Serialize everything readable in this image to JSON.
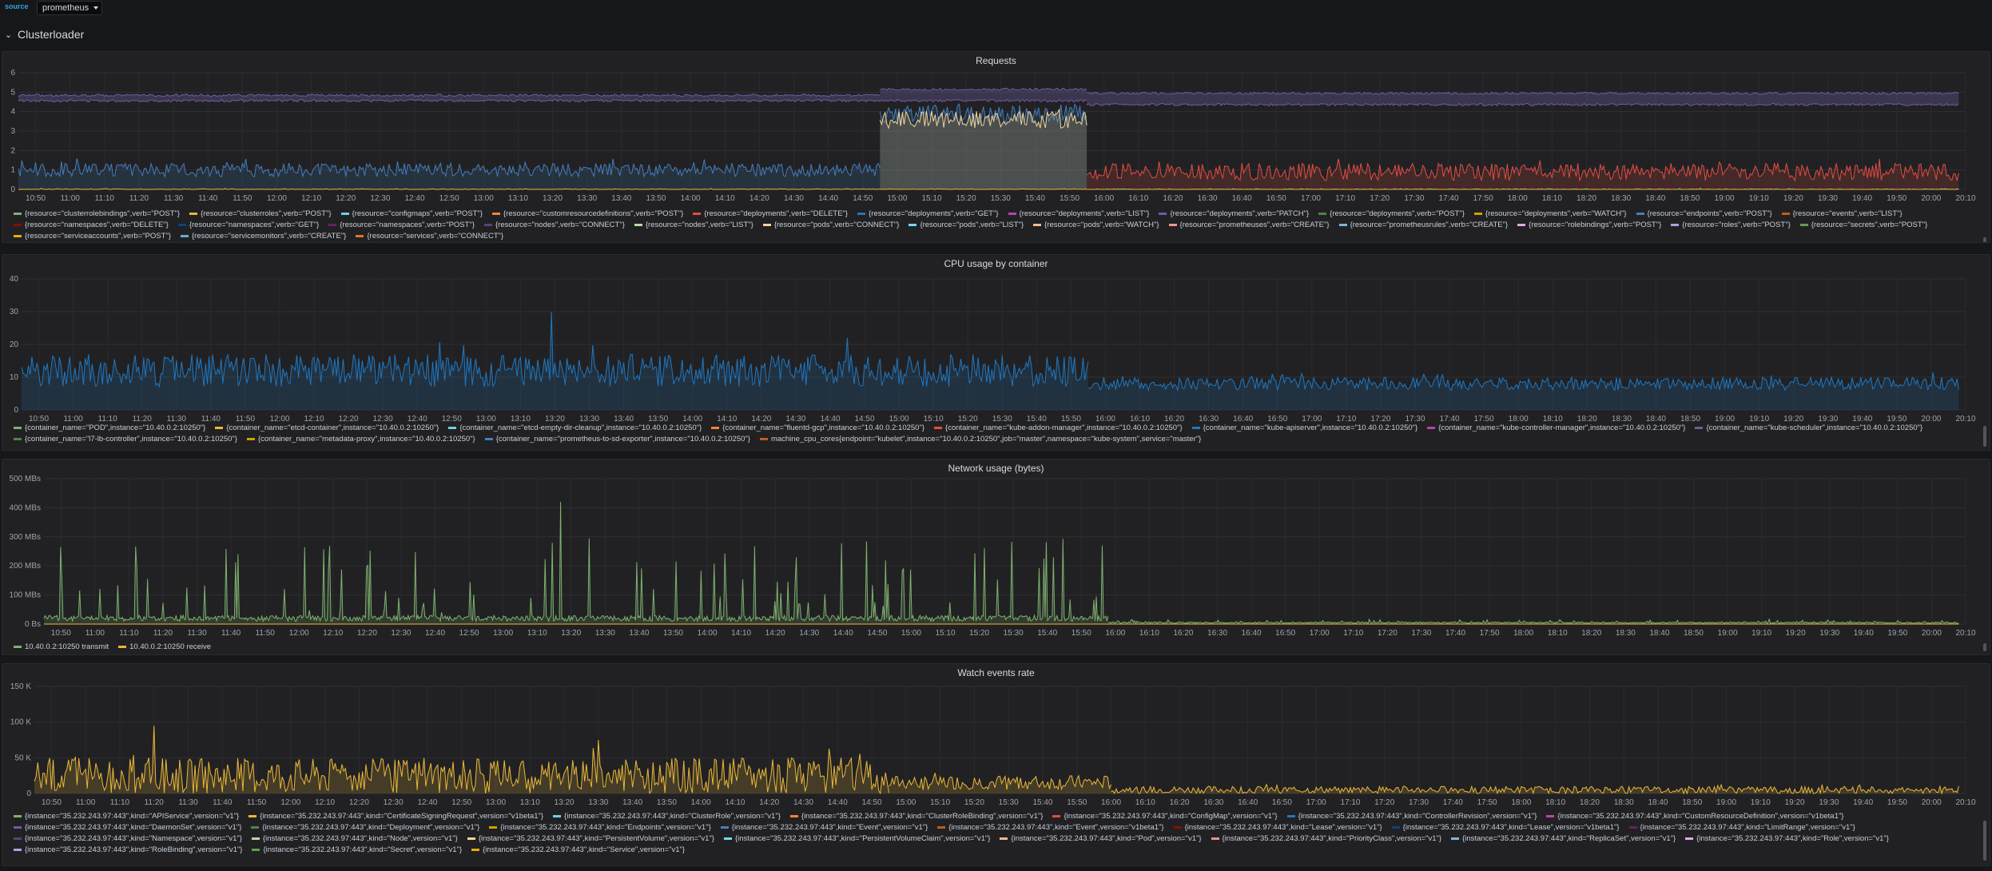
{
  "topbar": {
    "source_label": "source",
    "datasource": "prometheus"
  },
  "row": {
    "title": "Clusterloader"
  },
  "x_ticks": [
    "10:50",
    "11:00",
    "11:10",
    "11:20",
    "11:30",
    "11:40",
    "11:50",
    "12:00",
    "12:10",
    "12:20",
    "12:30",
    "12:40",
    "12:50",
    "13:00",
    "13:10",
    "13:20",
    "13:30",
    "13:40",
    "13:50",
    "14:00",
    "14:10",
    "14:20",
    "14:30",
    "14:40",
    "14:50",
    "15:00",
    "15:10",
    "15:20",
    "15:30",
    "15:40",
    "15:50",
    "16:00",
    "16:10",
    "16:20",
    "16:30",
    "16:40",
    "16:50",
    "17:00",
    "17:10",
    "17:20",
    "17:30",
    "17:40",
    "17:50",
    "18:00",
    "18:10",
    "18:20",
    "18:30",
    "18:40",
    "18:50",
    "19:00",
    "19:10",
    "19:20",
    "19:30",
    "19:40",
    "19:50",
    "20:00",
    "20:10"
  ],
  "panels": [
    {
      "title": "Requests",
      "y_ticks": [
        "0",
        "1",
        "2",
        "3",
        "4",
        "5",
        "6"
      ],
      "legend": [
        {
          "label": "{resource=\"clusterrolebindings\",verb=\"POST\"}",
          "color": "#7eb26d"
        },
        {
          "label": "{resource=\"clusterroles\",verb=\"POST\"}",
          "color": "#eab839"
        },
        {
          "label": "{resource=\"configmaps\",verb=\"POST\"}",
          "color": "#6ed0e0"
        },
        {
          "label": "{resource=\"customresourcedefinitions\",verb=\"POST\"}",
          "color": "#ef843c"
        },
        {
          "label": "{resource=\"deployments\",verb=\"DELETE\"}",
          "color": "#e24d42"
        },
        {
          "label": "{resource=\"deployments\",verb=\"GET\"}",
          "color": "#1f78c1"
        },
        {
          "label": "{resource=\"deployments\",verb=\"LIST\"}",
          "color": "#ba43a9"
        },
        {
          "label": "{resource=\"deployments\",verb=\"PATCH\"}",
          "color": "#705da0"
        },
        {
          "label": "{resource=\"deployments\",verb=\"POST\"}",
          "color": "#508642"
        },
        {
          "label": "{resource=\"deployments\",verb=\"WATCH\"}",
          "color": "#cca300"
        },
        {
          "label": "{resource=\"endpoints\",verb=\"POST\"}",
          "color": "#447ebc"
        },
        {
          "label": "{resource=\"events\",verb=\"LIST\"}",
          "color": "#c15c17"
        },
        {
          "label": "{resource=\"namespaces\",verb=\"DELETE\"}",
          "color": "#890f02"
        },
        {
          "label": "{resource=\"namespaces\",verb=\"GET\"}",
          "color": "#0a437c"
        },
        {
          "label": "{resource=\"namespaces\",verb=\"POST\"}",
          "color": "#6d1f62"
        },
        {
          "label": "{resource=\"nodes\",verb=\"CONNECT\"}",
          "color": "#584477"
        },
        {
          "label": "{resource=\"nodes\",verb=\"LIST\"}",
          "color": "#b7dbab"
        },
        {
          "label": "{resource=\"pods\",verb=\"CONNECT\"}",
          "color": "#f4d598"
        },
        {
          "label": "{resource=\"pods\",verb=\"LIST\"}",
          "color": "#70dbed"
        },
        {
          "label": "{resource=\"pods\",verb=\"WATCH\"}",
          "color": "#f9ba8f"
        },
        {
          "label": "{resource=\"prometheuses\",verb=\"CREATE\"}",
          "color": "#f29191"
        },
        {
          "label": "{resource=\"prometheusrules\",verb=\"CREATE\"}",
          "color": "#82b5d8"
        },
        {
          "label": "{resource=\"rolebindings\",verb=\"POST\"}",
          "color": "#e5a8e2"
        },
        {
          "label": "{resource=\"roles\",verb=\"POST\"}",
          "color": "#aea2e0"
        },
        {
          "label": "{resource=\"secrets\",verb=\"POST\"}",
          "color": "#629e51"
        },
        {
          "label": "{resource=\"serviceaccounts\",verb=\"POST\"}",
          "color": "#e5ac0e"
        },
        {
          "label": "{resource=\"servicemonitors\",verb=\"CREATE\"}",
          "color": "#64b0c8"
        },
        {
          "label": "{resource=\"services\",verb=\"CONNECT\"}",
          "color": "#e0752d"
        }
      ]
    },
    {
      "title": "CPU usage by container",
      "y_ticks": [
        "0",
        "10",
        "20",
        "30",
        "40"
      ],
      "legend": [
        {
          "label": "{container_name=\"POD\",instance=\"10.40.0.2:10250\"}",
          "color": "#7eb26d"
        },
        {
          "label": "{container_name=\"etcd-container\",instance=\"10.40.0.2:10250\"}",
          "color": "#eab839"
        },
        {
          "label": "{container_name=\"etcd-empty-dir-cleanup\",instance=\"10.40.0.2:10250\"}",
          "color": "#6ed0e0"
        },
        {
          "label": "{container_name=\"fluentd-gcp\",instance=\"10.40.0.2:10250\"}",
          "color": "#ef843c"
        },
        {
          "label": "{container_name=\"kube-addon-manager\",instance=\"10.40.0.2:10250\"}",
          "color": "#e24d42"
        },
        {
          "label": "{container_name=\"kube-apiserver\",instance=\"10.40.0.2:10250\"}",
          "color": "#1f78c1"
        },
        {
          "label": "{container_name=\"kube-controller-manager\",instance=\"10.40.0.2:10250\"}",
          "color": "#ba43a9"
        },
        {
          "label": "{container_name=\"kube-scheduler\",instance=\"10.40.0.2:10250\"}",
          "color": "#705da0"
        },
        {
          "label": "{container_name=\"l7-lb-controller\",instance=\"10.40.0.2:10250\"}",
          "color": "#508642"
        },
        {
          "label": "{container_name=\"metadata-proxy\",instance=\"10.40.0.2:10250\"}",
          "color": "#cca300"
        },
        {
          "label": "{container_name=\"prometheus-to-sd-exporter\",instance=\"10.40.0.2:10250\"}",
          "color": "#447ebc"
        },
        {
          "label": "machine_cpu_cores{endpoint=\"kubelet\",instance=\"10.40.0.2:10250\",job=\"master\",namespace=\"kube-system\",service=\"master\"}",
          "color": "#c15c17"
        }
      ]
    },
    {
      "title": "Network usage (bytes)",
      "y_ticks": [
        "0 Bs",
        "100 MBs",
        "200 MBs",
        "300 MBs",
        "400 MBs",
        "500 MBs"
      ],
      "legend": [
        {
          "label": "10.40.0.2:10250 transmit",
          "color": "#7eb26d"
        },
        {
          "label": "10.40.0.2:10250 receive",
          "color": "#eab839"
        }
      ]
    },
    {
      "title": "Watch events rate",
      "y_ticks": [
        "0",
        "50 K",
        "100 K",
        "150 K"
      ],
      "legend": [
        {
          "label": "{instance=\"35.232.243.97:443\",kind=\"APIService\",version=\"v1\"}",
          "color": "#7eb26d"
        },
        {
          "label": "{instance=\"35.232.243.97:443\",kind=\"CertificateSigningRequest\",version=\"v1beta1\"}",
          "color": "#eab839"
        },
        {
          "label": "{instance=\"35.232.243.97:443\",kind=\"ClusterRole\",version=\"v1\"}",
          "color": "#6ed0e0"
        },
        {
          "label": "{instance=\"35.232.243.97:443\",kind=\"ClusterRoleBinding\",version=\"v1\"}",
          "color": "#ef843c"
        },
        {
          "label": "{instance=\"35.232.243.97:443\",kind=\"ConfigMap\",version=\"v1\"}",
          "color": "#e24d42"
        },
        {
          "label": "{instance=\"35.232.243.97:443\",kind=\"ControllerRevision\",version=\"v1\"}",
          "color": "#1f78c1"
        },
        {
          "label": "{instance=\"35.232.243.97:443\",kind=\"CustomResourceDefinition\",version=\"v1beta1\"}",
          "color": "#ba43a9"
        },
        {
          "label": "{instance=\"35.232.243.97:443\",kind=\"DaemonSet\",version=\"v1\"}",
          "color": "#705da0"
        },
        {
          "label": "{instance=\"35.232.243.97:443\",kind=\"Deployment\",version=\"v1\"}",
          "color": "#508642"
        },
        {
          "label": "{instance=\"35.232.243.97:443\",kind=\"Endpoints\",version=\"v1\"}",
          "color": "#cca300"
        },
        {
          "label": "{instance=\"35.232.243.97:443\",kind=\"Event\",version=\"v1\"}",
          "color": "#447ebc"
        },
        {
          "label": "{instance=\"35.232.243.97:443\",kind=\"Event\",version=\"v1beta1\"}",
          "color": "#c15c17"
        },
        {
          "label": "{instance=\"35.232.243.97:443\",kind=\"Lease\",version=\"v1\"}",
          "color": "#890f02"
        },
        {
          "label": "{instance=\"35.232.243.97:443\",kind=\"Lease\",version=\"v1beta1\"}",
          "color": "#0a437c"
        },
        {
          "label": "{instance=\"35.232.243.97:443\",kind=\"LimitRange\",version=\"v1\"}",
          "color": "#6d1f62"
        },
        {
          "label": "{instance=\"35.232.243.97:443\",kind=\"Namespace\",version=\"v1\"}",
          "color": "#584477"
        },
        {
          "label": "{instance=\"35.232.243.97:443\",kind=\"Node\",version=\"v1\"}",
          "color": "#b7dbab"
        },
        {
          "label": "{instance=\"35.232.243.97:443\",kind=\"PersistentVolume\",version=\"v1\"}",
          "color": "#f4d598"
        },
        {
          "label": "{instance=\"35.232.243.97:443\",kind=\"PersistentVolumeClaim\",version=\"v1\"}",
          "color": "#70dbed"
        },
        {
          "label": "{instance=\"35.232.243.97:443\",kind=\"Pod\",version=\"v1\"}",
          "color": "#f9ba8f"
        },
        {
          "label": "{instance=\"35.232.243.97:443\",kind=\"PriorityClass\",version=\"v1\"}",
          "color": "#f29191"
        },
        {
          "label": "{instance=\"35.232.243.97:443\",kind=\"ReplicaSet\",version=\"v1\"}",
          "color": "#82b5d8"
        },
        {
          "label": "{instance=\"35.232.243.97:443\",kind=\"Role\",version=\"v1\"}",
          "color": "#e5a8e2"
        },
        {
          "label": "{instance=\"35.232.243.97:443\",kind=\"RoleBinding\",version=\"v1\"}",
          "color": "#aea2e0"
        },
        {
          "label": "{instance=\"35.232.243.97:443\",kind=\"Secret\",version=\"v1\"}",
          "color": "#629e51"
        },
        {
          "label": "{instance=\"35.232.243.97:443\",kind=\"Service\",version=\"v1\"}",
          "color": "#e5ac0e"
        }
      ]
    }
  ],
  "chart_data": [
    {
      "type": "line",
      "title": "Requests",
      "x_range": [
        "10:45",
        "20:10"
      ],
      "ylim": [
        0,
        6
      ],
      "grid": true,
      "legend_position": "bottom",
      "series": [
        {
          "name": "{resource=\"nodes\",verb=\"LIST\"}",
          "color": "#705da0",
          "style": "band",
          "segments": [
            {
              "from": "10:45",
              "to": "14:55",
              "low": 4.5,
              "high": 4.9
            },
            {
              "from": "14:55",
              "to": "15:55",
              "low": 4.5,
              "high": 5.2
            },
            {
              "from": "15:55",
              "to": "20:08",
              "low": 4.3,
              "high": 5.0
            }
          ]
        },
        {
          "name": "{resource=\"pods\",verb=\"LIST\"}",
          "color": "#447ebc",
          "style": "noise",
          "segments": [
            {
              "from": "10:45",
              "to": "14:55",
              "mean": 1.0,
              "amp": 0.35
            },
            {
              "from": "14:55",
              "to": "15:55",
              "mean": 3.9,
              "amp": 0.5
            },
            {
              "from": "15:55",
              "to": "20:08",
              "mean": 0.0,
              "amp": 0.0
            }
          ]
        },
        {
          "name": "{resource=\"pods\",verb=\"CONNECT\"}",
          "color": "#f4d598",
          "style": "noise",
          "segments": [
            {
              "from": "14:55",
              "to": "15:55",
              "mean": 3.6,
              "amp": 0.45
            }
          ]
        },
        {
          "name": "{resource=\"prometheuses\",verb=\"CREATE\"}",
          "color": "#e24d42",
          "style": "noise",
          "segments": [
            {
              "from": "15:55",
              "to": "20:08",
              "mean": 0.9,
              "amp": 0.45
            }
          ]
        },
        {
          "name": "{resource=\"events\",verb=\"LIST\"}",
          "color": "#eab839",
          "style": "noise",
          "segments": [
            {
              "from": "10:45",
              "to": "20:08",
              "mean": 0.0,
              "amp": 0.03
            }
          ]
        }
      ]
    },
    {
      "type": "line",
      "title": "CPU usage by container",
      "x_range": [
        "10:45",
        "20:10"
      ],
      "ylim": [
        0,
        40
      ],
      "grid": true,
      "legend_position": "bottom",
      "series": [
        {
          "name": "{container_name=\"kube-apiserver\",instance=\"10.40.0.2:10250\"}",
          "color": "#1f78c1",
          "style": "noise",
          "segments": [
            {
              "from": "10:45",
              "to": "15:55",
              "mean": 12,
              "amp": 5,
              "spikes": [
                {
                  "at": "13:19",
                  "value": 30
                },
                {
                  "at": "14:45",
                  "value": 22
                }
              ]
            },
            {
              "from": "15:55",
              "to": "20:08",
              "mean": 8,
              "amp": 2
            }
          ]
        }
      ]
    },
    {
      "type": "line",
      "title": "Network usage (bytes)",
      "x_range": [
        "10:45",
        "20:10"
      ],
      "ylim": [
        0,
        500
      ],
      "y_unit": "MBs",
      "grid": true,
      "legend_position": "bottom",
      "series": [
        {
          "name": "10.40.0.2:10250 transmit",
          "color": "#7eb26d",
          "style": "spiky",
          "segments": [
            {
              "from": "10:45",
              "to": "15:58",
              "base": 20,
              "spike_max": 270,
              "spikes": [
                {
                  "at": "13:17",
                  "value": 420
                },
                {
                  "at": "10:50",
                  "value": 265
                },
                {
                  "at": "11:42",
                  "value": 240
                },
                {
                  "at": "15:56",
                  "value": 270
                }
              ]
            },
            {
              "from": "15:58",
              "to": "20:08",
              "base": 5,
              "spike_max": 10
            }
          ]
        },
        {
          "name": "10.40.0.2:10250 receive",
          "color": "#eab839",
          "style": "flat",
          "segments": [
            {
              "from": "10:45",
              "to": "20:08",
              "value": 0
            }
          ]
        }
      ]
    },
    {
      "type": "line",
      "title": "Watch events rate",
      "x_range": [
        "10:45",
        "20:10"
      ],
      "ylim": [
        0,
        150
      ],
      "y_unit": "K",
      "grid": true,
      "legend_position": "bottom",
      "series": [
        {
          "name": "{instance=\"35.232.243.97:443\",kind=\"Pod\",version=\"v1\"}",
          "color": "#eab839",
          "style": "noise",
          "segments": [
            {
              "from": "10:45",
              "to": "14:55",
              "mean": 25,
              "amp": 25,
              "spikes": [
                {
                  "at": "11:20",
                  "value": 95
                },
                {
                  "at": "13:30",
                  "value": 75
                }
              ]
            },
            {
              "from": "14:55",
              "to": "16:00",
              "mean": 15,
              "amp": 10
            },
            {
              "from": "16:00",
              "to": "20:08",
              "mean": 5,
              "amp": 5
            }
          ]
        }
      ]
    }
  ]
}
